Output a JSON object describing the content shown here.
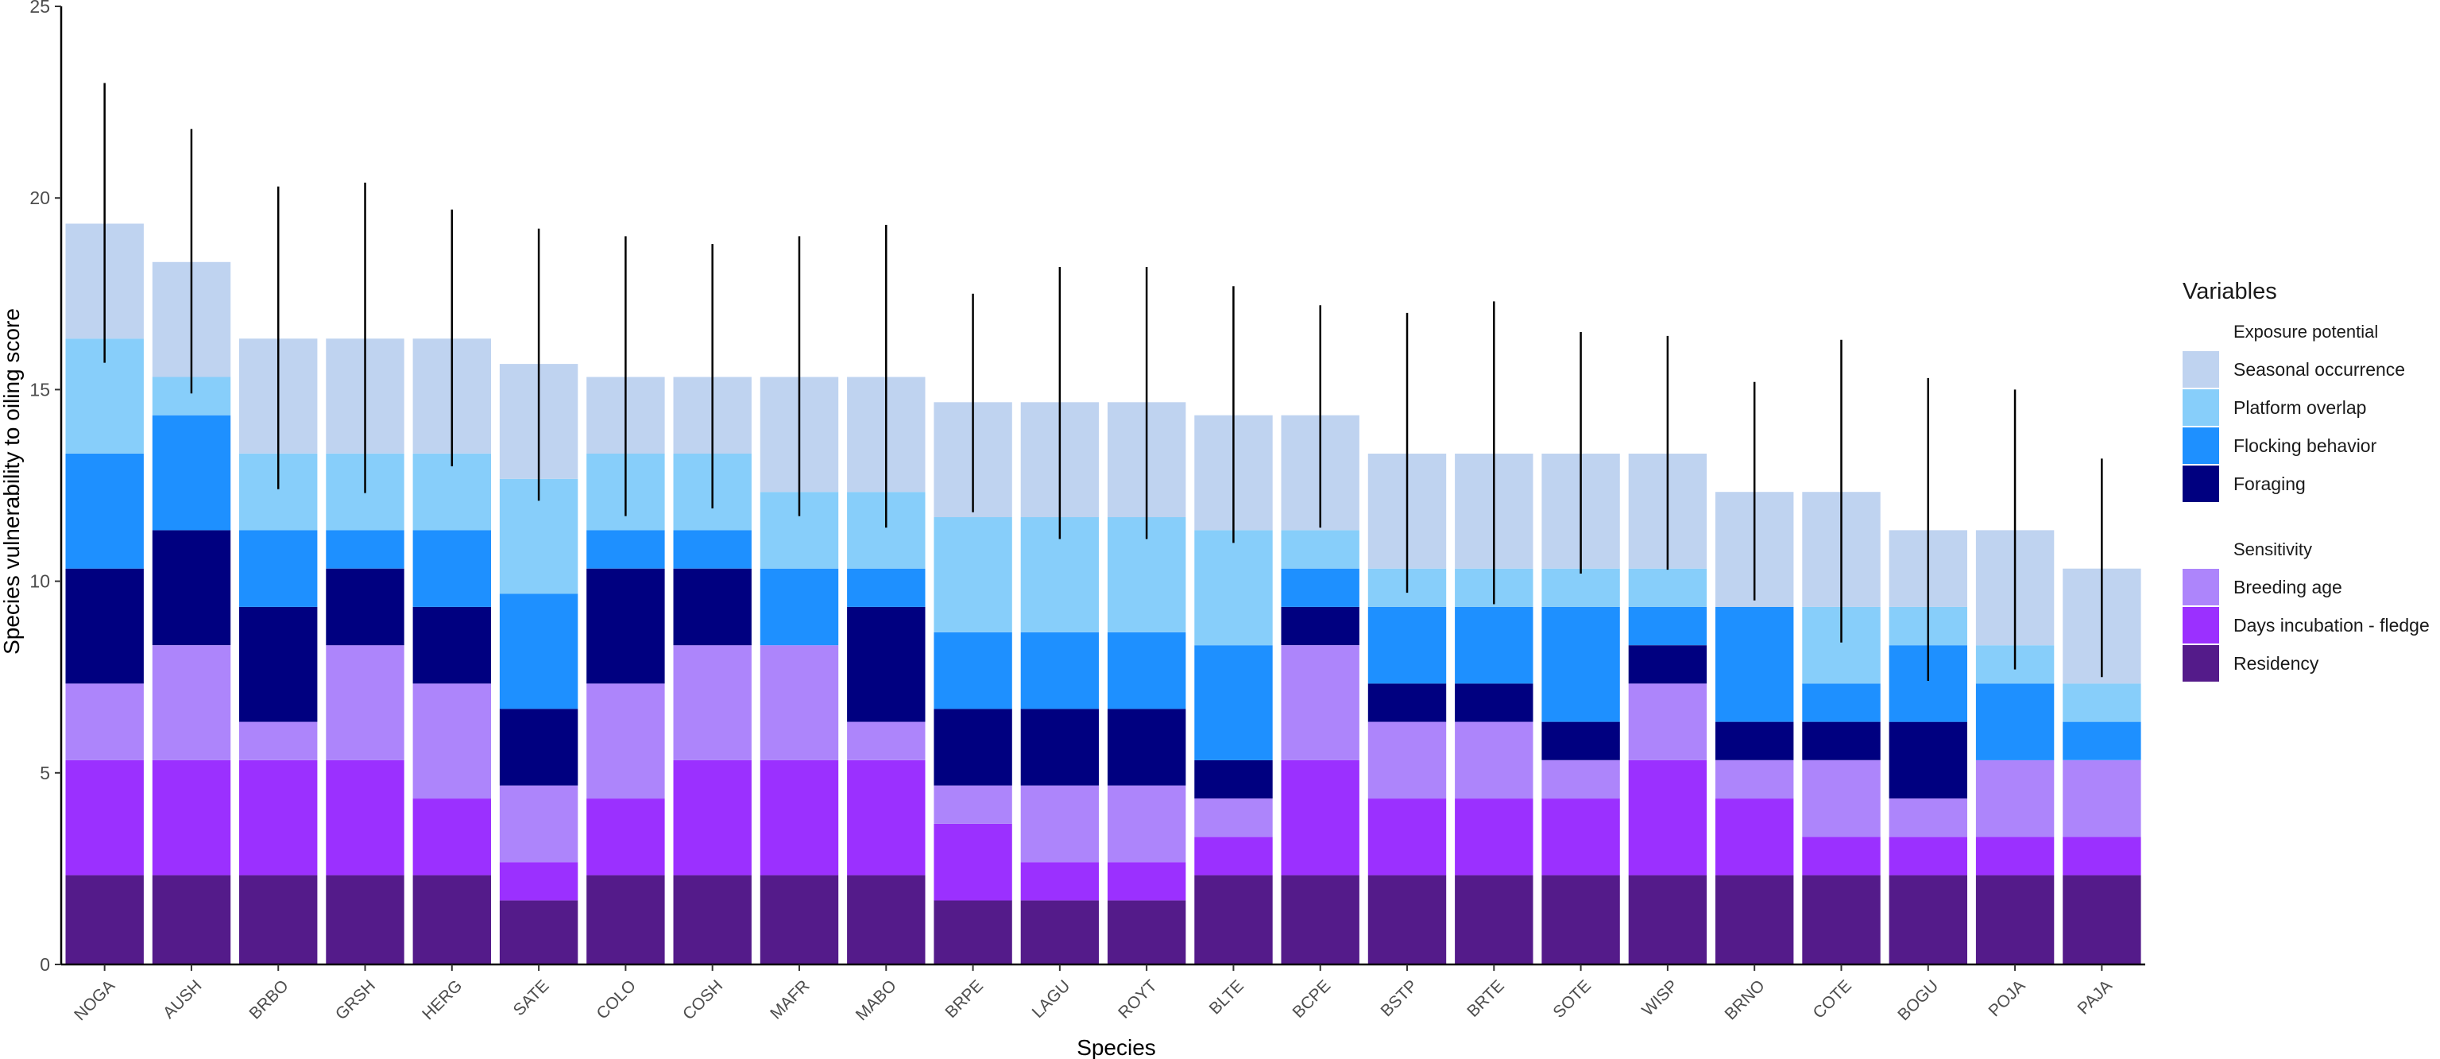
{
  "chart_data": {
    "type": "bar",
    "stacked": true,
    "xlabel": "Species",
    "ylabel": "Species vulnerability to oiling score",
    "ylim": [
      0,
      25
    ],
    "yticks": [
      0,
      5,
      10,
      15,
      20,
      25
    ],
    "categories": [
      "NOGA",
      "AUSH",
      "BRBO",
      "GRSH",
      "HERG",
      "SATE",
      "COLO",
      "COSH",
      "MAFR",
      "MABO",
      "BRPE",
      "LAGU",
      "ROYT",
      "BLTE",
      "BCPE",
      "BSTP",
      "BRTE",
      "SOTE",
      "WISP",
      "BRNO",
      "COTE",
      "BOGU",
      "POJA",
      "PAJA"
    ],
    "series": [
      {
        "name": "Residency",
        "color": "#541b8a",
        "values": [
          2.33,
          2.33,
          2.33,
          2.33,
          2.33,
          1.67,
          2.33,
          2.33,
          2.33,
          2.33,
          1.67,
          1.67,
          1.67,
          2.33,
          2.33,
          2.33,
          2.33,
          2.33,
          2.33,
          2.33,
          2.33,
          2.33,
          2.33,
          2.33
        ]
      },
      {
        "name": "Days incubation - fledge",
        "color": "#9b30ff",
        "values": [
          3,
          3,
          3,
          3,
          2,
          1,
          2,
          3,
          3,
          3,
          2,
          1,
          1,
          1,
          3,
          2,
          2,
          2,
          3,
          2,
          1,
          1,
          1,
          1
        ]
      },
      {
        "name": "Breeding age",
        "color": "#ad85fb",
        "values": [
          2,
          3,
          1,
          3,
          3,
          2,
          3,
          3,
          3,
          1,
          1,
          2,
          2,
          1,
          3,
          2,
          2,
          1,
          2,
          1,
          2,
          1,
          2,
          2
        ]
      },
      {
        "name": "Foraging",
        "color": "#000080",
        "values": [
          3,
          3,
          3,
          2,
          2,
          2,
          3,
          2,
          0,
          3,
          2,
          2,
          2,
          1,
          1,
          1,
          1,
          1,
          1,
          1,
          1,
          2,
          0,
          0
        ]
      },
      {
        "name": "Flocking behavior",
        "color": "#1e90ff",
        "values": [
          3,
          3,
          2,
          1,
          2,
          3,
          1,
          1,
          2,
          1,
          2,
          2,
          2,
          3,
          1,
          2,
          2,
          3,
          1,
          3,
          1,
          2,
          2,
          1
        ]
      },
      {
        "name": "Platform overlap",
        "color": "#87cefa",
        "values": [
          3,
          1,
          2,
          2,
          2,
          3,
          2,
          2,
          2,
          2,
          3,
          3,
          3,
          3,
          1,
          1,
          1,
          1,
          1,
          0,
          2,
          1,
          1,
          1
        ]
      },
      {
        "name": "Seasonal occurrence",
        "color": "#bfd3f0",
        "values": [
          3,
          3,
          3,
          3,
          3,
          3,
          2,
          2,
          3,
          3,
          3,
          3,
          3,
          3,
          3,
          3,
          3,
          3,
          3,
          3,
          3,
          2,
          3,
          3
        ]
      }
    ],
    "totals": [
      19.33,
      18.33,
      16.33,
      16.33,
      16.33,
      15.67,
      15.33,
      15.33,
      15.33,
      15.33,
      14.67,
      14.67,
      14.67,
      14.33,
      14.33,
      13.33,
      13.33,
      13.33,
      13.33,
      12.33,
      12.33,
      11.33,
      11.33,
      10.33
    ],
    "error_bars": [
      {
        "low": 15.7,
        "high": 23
      },
      {
        "low": 14.9,
        "high": 21.8
      },
      {
        "low": 12.4,
        "high": 20.3
      },
      {
        "low": 12.3,
        "high": 20.4
      },
      {
        "low": 13.0,
        "high": 19.7
      },
      {
        "low": 12.1,
        "high": 19.2
      },
      {
        "low": 11.7,
        "high": 19.0
      },
      {
        "low": 11.9,
        "high": 18.8
      },
      {
        "low": 11.7,
        "high": 19.0
      },
      {
        "low": 11.4,
        "high": 19.3
      },
      {
        "low": 11.8,
        "high": 17.5
      },
      {
        "low": 11.1,
        "high": 18.2
      },
      {
        "low": 11.1,
        "high": 18.2
      },
      {
        "low": 11.0,
        "high": 17.7
      },
      {
        "low": 11.4,
        "high": 17.2
      },
      {
        "low": 9.7,
        "high": 17.0
      },
      {
        "low": 9.4,
        "high": 17.3
      },
      {
        "low": 10.2,
        "high": 16.5
      },
      {
        "low": 10.3,
        "high": 16.4
      },
      {
        "low": 9.5,
        "high": 15.2
      },
      {
        "low": 8.4,
        "high": 16.3
      },
      {
        "low": 7.4,
        "high": 15.3
      },
      {
        "low": 7.7,
        "high": 15.0
      },
      {
        "low": 7.5,
        "high": 13.2
      }
    ],
    "legend": {
      "title": "Variables",
      "position": "right",
      "groups": [
        {
          "title": "Exposure potential",
          "items": [
            "Seasonal occurrence",
            "Platform overlap",
            "Flocking behavior",
            "Foraging"
          ]
        },
        {
          "title": "Sensitivity",
          "items": [
            "Breeding age",
            "Days incubation - fledge",
            "Residency"
          ]
        }
      ]
    }
  }
}
